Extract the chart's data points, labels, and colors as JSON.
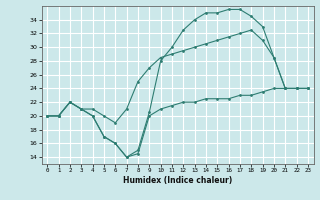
{
  "xlabel": "Humidex (Indice chaleur)",
  "ylabel": "",
  "bg_color": "#cce8ea",
  "line_color": "#2e7d72",
  "grid_color": "#ffffff",
  "xlim": [
    -0.5,
    23.5
  ],
  "ylim": [
    13,
    36
  ],
  "yticks": [
    14,
    16,
    18,
    20,
    22,
    24,
    26,
    28,
    30,
    32,
    34
  ],
  "xticks": [
    0,
    1,
    2,
    3,
    4,
    5,
    6,
    7,
    8,
    9,
    10,
    11,
    12,
    13,
    14,
    15,
    16,
    17,
    18,
    19,
    20,
    21,
    22,
    23
  ],
  "curve1": [
    20,
    20,
    22,
    21,
    20,
    17,
    16,
    14,
    14.5,
    20,
    21,
    21.5,
    22,
    22,
    22.5,
    22.5,
    22.5,
    23,
    23,
    23.5,
    24,
    24,
    24,
    24
  ],
  "curve2": [
    20,
    20,
    22,
    21,
    20,
    17,
    16,
    14,
    15,
    20.5,
    28,
    30,
    32.5,
    34,
    35,
    35,
    35.5,
    35.5,
    34.5,
    33,
    28.5,
    24,
    24,
    24
  ],
  "curve3": [
    20,
    20,
    22,
    21,
    21,
    20,
    19,
    21,
    25,
    27,
    28.5,
    29,
    29.5,
    30,
    30.5,
    31,
    31.5,
    32,
    32.5,
    31,
    28.5,
    24,
    24,
    24
  ]
}
